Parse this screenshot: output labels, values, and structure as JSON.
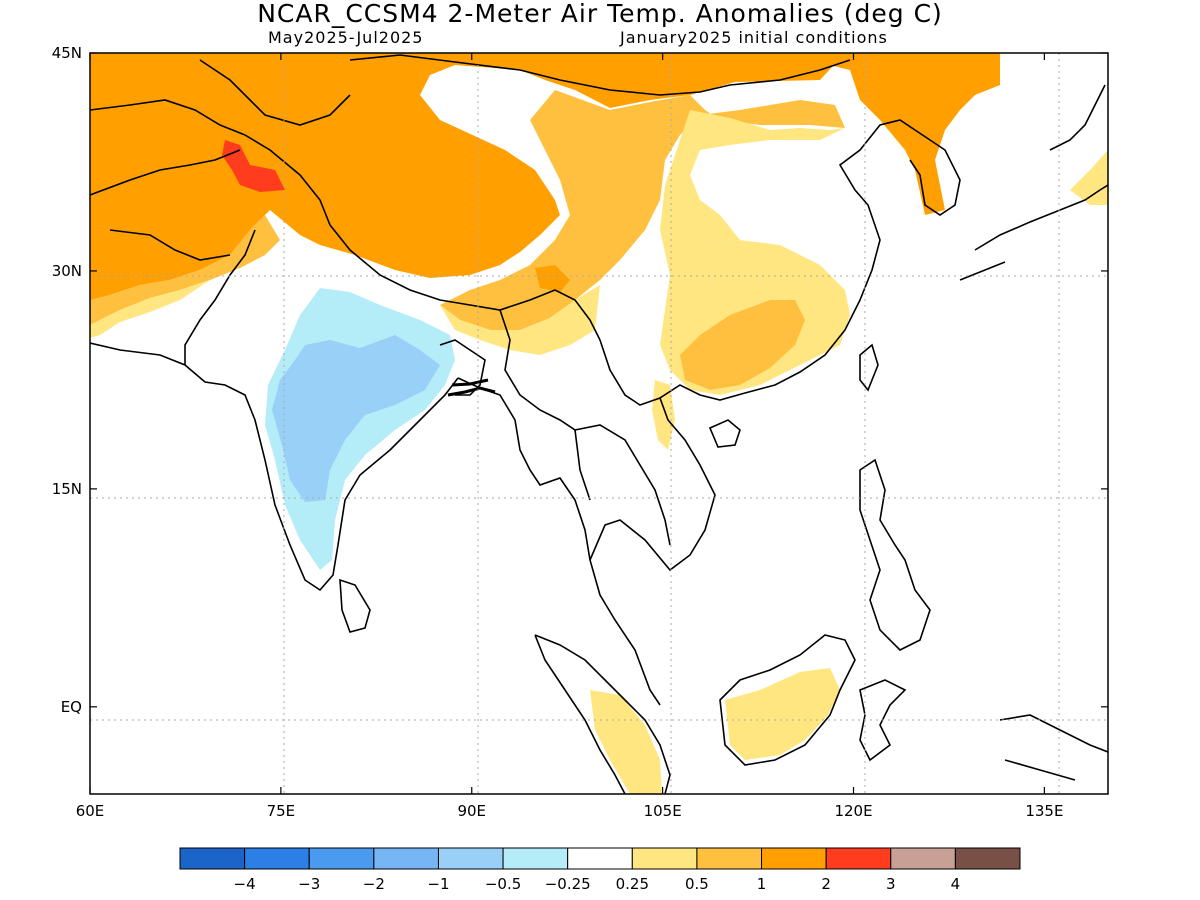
{
  "title": "NCAR_CCSM4 2-Meter Air Temp. Anomalies (deg C)",
  "subtitle_left": "May2025-Jul2025",
  "subtitle_right": "January2025 initial conditions",
  "map": {
    "lon_range": [
      60,
      140
    ],
    "lat_range": [
      -6,
      45
    ],
    "lon_ticks": [
      {
        "value": 60,
        "label": "60E"
      },
      {
        "value": 75,
        "label": "75E"
      },
      {
        "value": 90,
        "label": "90E"
      },
      {
        "value": 105,
        "label": "105E"
      },
      {
        "value": 120,
        "label": "120E"
      },
      {
        "value": 135,
        "label": "135E"
      }
    ],
    "lat_ticks": [
      {
        "value": 45,
        "label": "45N"
      },
      {
        "value": 30,
        "label": "30N"
      },
      {
        "value": 15,
        "label": "15N"
      },
      {
        "value": 0,
        "label": "EQ"
      }
    ],
    "gridlines": "dotted",
    "colorbar": {
      "colors": [
        "#1b64c8",
        "#2c7fe6",
        "#4a9bf0",
        "#77b6f5",
        "#99d0f8",
        "#b4ecf8",
        "#ffffff",
        "#ffe680",
        "#ffc040",
        "#ffa000",
        "#ff3c1e",
        "#c8a096",
        "#785046"
      ],
      "labels": [
        "-4",
        "-3",
        "-2",
        "-1",
        "-0.5",
        "-0.25",
        "0.25",
        "0.5",
        "1",
        "2",
        "3",
        "4"
      ]
    }
  }
}
